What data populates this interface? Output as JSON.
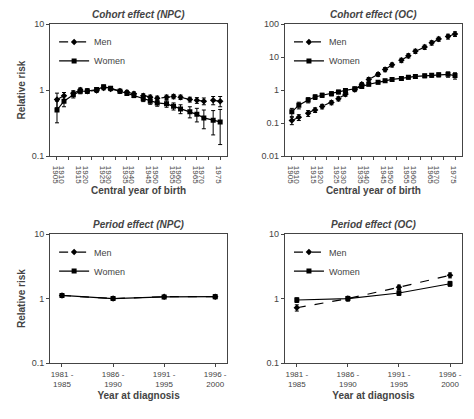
{
  "chart_data": [
    {
      "type": "line",
      "title": "Cohort effect (NPC)",
      "xlabel": "Central year of birth",
      "ylabel": "Relative risk",
      "x": [
        1905,
        1908,
        1912,
        1915,
        1918,
        1922,
        1925,
        1928,
        1932,
        1935,
        1938,
        1942,
        1945,
        1948,
        1952,
        1955,
        1958,
        1962,
        1965,
        1968,
        1972,
        1975
      ],
      "xlim": [
        1902,
        1978
      ],
      "xticks": [
        1905,
        1910,
        1915,
        1920,
        1925,
        1930,
        1935,
        1940,
        1945,
        1950,
        1955,
        1960,
        1965,
        1970,
        1975
      ],
      "ylim": [
        0.1,
        10
      ],
      "yticks": [
        0.1,
        1,
        10
      ],
      "log": "y",
      "grid": false,
      "legend": "upper left",
      "series": [
        {
          "name": "Men",
          "color": "black",
          "marker": "diamond",
          "line_style": "dashed",
          "values": [
            0.72,
            0.82,
            0.9,
            1.0,
            0.96,
            0.99,
            1.08,
            1.04,
            0.97,
            0.93,
            0.88,
            0.82,
            0.78,
            0.75,
            0.78,
            0.8,
            0.78,
            0.72,
            0.7,
            0.68,
            0.7,
            0.68
          ],
          "error_lo": [
            0.18,
            0.1,
            0.08,
            0.08,
            0.07,
            0.07,
            0.07,
            0.06,
            0.06,
            0.06,
            0.06,
            0.06,
            0.06,
            0.06,
            0.06,
            0.06,
            0.06,
            0.06,
            0.07,
            0.08,
            0.1,
            0.12
          ],
          "error_hi": [
            0.18,
            0.1,
            0.08,
            0.08,
            0.07,
            0.07,
            0.07,
            0.06,
            0.06,
            0.06,
            0.06,
            0.06,
            0.06,
            0.06,
            0.06,
            0.06,
            0.06,
            0.06,
            0.07,
            0.08,
            0.1,
            0.12
          ]
        },
        {
          "name": "Women",
          "color": "black",
          "marker": "square",
          "line_style": "solid",
          "values": [
            0.5,
            0.68,
            0.85,
            0.96,
            0.97,
            1.02,
            1.12,
            1.07,
            0.96,
            0.89,
            0.83,
            0.74,
            0.68,
            0.64,
            0.62,
            0.57,
            0.52,
            0.47,
            0.43,
            0.38,
            0.35,
            0.33
          ],
          "error_lo": [
            0.18,
            0.12,
            0.09,
            0.08,
            0.08,
            0.07,
            0.07,
            0.06,
            0.06,
            0.06,
            0.06,
            0.07,
            0.07,
            0.07,
            0.07,
            0.07,
            0.08,
            0.09,
            0.1,
            0.12,
            0.14,
            0.18
          ],
          "error_hi": [
            0.18,
            0.12,
            0.09,
            0.08,
            0.08,
            0.07,
            0.07,
            0.06,
            0.06,
            0.06,
            0.06,
            0.07,
            0.07,
            0.07,
            0.07,
            0.07,
            0.08,
            0.09,
            0.1,
            0.12,
            0.14,
            0.18
          ]
        }
      ]
    },
    {
      "type": "line",
      "title": "Cohort effect (OC)",
      "xlabel": "Central year of birth",
      "x": [
        1905,
        1908,
        1912,
        1915,
        1918,
        1922,
        1925,
        1928,
        1932,
        1935,
        1938,
        1942,
        1945,
        1948,
        1952,
        1955,
        1958,
        1962,
        1965,
        1968,
        1972,
        1975
      ],
      "xlim": [
        1902,
        1978
      ],
      "xticks": [
        1905,
        1910,
        1915,
        1920,
        1925,
        1930,
        1935,
        1940,
        1945,
        1950,
        1955,
        1960,
        1965,
        1970,
        1975
      ],
      "ylim": [
        0.01,
        100
      ],
      "yticks": [
        0.01,
        0.1,
        1,
        10,
        100
      ],
      "log": "y",
      "grid": false,
      "legend": "upper left",
      "series": [
        {
          "name": "Men",
          "color": "black",
          "marker": "diamond",
          "line_style": "dashed",
          "values": [
            0.12,
            0.15,
            0.2,
            0.25,
            0.32,
            0.42,
            0.55,
            0.75,
            1.05,
            1.5,
            2.1,
            3.0,
            4.2,
            5.8,
            8.0,
            11.0,
            15.0,
            20.0,
            27.0,
            35.0,
            42.0,
            50.0
          ],
          "error_lo": [
            0.03,
            0.03,
            0.04,
            0.04,
            0.05,
            0.06,
            0.08,
            0.1,
            0.15,
            0.2,
            0.3,
            0.4,
            0.6,
            0.8,
            1.2,
            1.6,
            2.2,
            3.0,
            4.0,
            5.0,
            7.0,
            8.0
          ],
          "error_hi": [
            0.03,
            0.03,
            0.04,
            0.04,
            0.05,
            0.06,
            0.08,
            0.1,
            0.15,
            0.2,
            0.3,
            0.4,
            0.6,
            0.8,
            1.2,
            1.6,
            2.2,
            3.0,
            4.0,
            5.0,
            7.0,
            8.0
          ]
        },
        {
          "name": "Women",
          "color": "black",
          "marker": "square",
          "line_style": "solid",
          "values": [
            0.22,
            0.35,
            0.5,
            0.62,
            0.7,
            0.78,
            0.88,
            0.98,
            1.1,
            1.28,
            1.5,
            1.72,
            1.92,
            2.1,
            2.25,
            2.45,
            2.6,
            2.7,
            2.8,
            2.9,
            3.0,
            2.75
          ],
          "error_lo": [
            0.06,
            0.08,
            0.09,
            0.1,
            0.1,
            0.11,
            0.11,
            0.12,
            0.13,
            0.14,
            0.16,
            0.19,
            0.21,
            0.23,
            0.26,
            0.3,
            0.32,
            0.34,
            0.36,
            0.4,
            0.55,
            0.6
          ],
          "error_hi": [
            0.06,
            0.08,
            0.09,
            0.1,
            0.1,
            0.11,
            0.11,
            0.12,
            0.13,
            0.14,
            0.16,
            0.19,
            0.21,
            0.23,
            0.26,
            0.3,
            0.32,
            0.34,
            0.36,
            0.4,
            0.55,
            0.6
          ]
        }
      ]
    },
    {
      "type": "line",
      "title": "Period effect (NPC)",
      "xlabel": "Year at diagnosis",
      "ylabel": "Relative risk",
      "categories": [
        "1981 -\n1985",
        "1986 -\n1990",
        "1991 -\n1995",
        "1996 -\n2000"
      ],
      "ylim": [
        0.1,
        10
      ],
      "yticks": [
        0.1,
        1,
        10
      ],
      "log": "y",
      "grid": false,
      "legend": "upper left",
      "series": [
        {
          "name": "Men",
          "color": "black",
          "marker": "diamond",
          "line_style": "dashed",
          "values": [
            1.12,
            1.0,
            1.07,
            1.07
          ],
          "error_lo": [
            0.07,
            0.05,
            0.05,
            0.07
          ],
          "error_hi": [
            0.07,
            0.05,
            0.05,
            0.07
          ]
        },
        {
          "name": "Women",
          "color": "black",
          "marker": "square",
          "line_style": "solid",
          "values": [
            1.12,
            1.0,
            1.06,
            1.07
          ],
          "error_lo": [
            0.07,
            0.05,
            0.05,
            0.07
          ],
          "error_hi": [
            0.07,
            0.05,
            0.05,
            0.07
          ]
        }
      ]
    },
    {
      "type": "line",
      "title": "Period effect (OC)",
      "xlabel": "Year at diagnosis",
      "categories": [
        "1981 -\n1985",
        "1986 -\n1990",
        "1991 -\n1995",
        "1996 -\n2000"
      ],
      "ylim": [
        0.1,
        10
      ],
      "yticks": [
        0.1,
        1,
        10
      ],
      "log": "y",
      "grid": false,
      "legend": "upper left",
      "series": [
        {
          "name": "Men",
          "color": "black",
          "marker": "diamond",
          "line_style": "dashed",
          "values": [
            0.72,
            1.0,
            1.5,
            2.3
          ],
          "error_lo": [
            0.08,
            0.08,
            0.12,
            0.2
          ],
          "error_hi": [
            0.08,
            0.08,
            0.12,
            0.2
          ]
        },
        {
          "name": "Women",
          "color": "black",
          "marker": "square",
          "line_style": "solid",
          "values": [
            0.95,
            1.0,
            1.22,
            1.7
          ],
          "error_lo": [
            0.08,
            0.08,
            0.1,
            0.15
          ],
          "error_hi": [
            0.08,
            0.08,
            0.1,
            0.15
          ]
        }
      ]
    }
  ]
}
